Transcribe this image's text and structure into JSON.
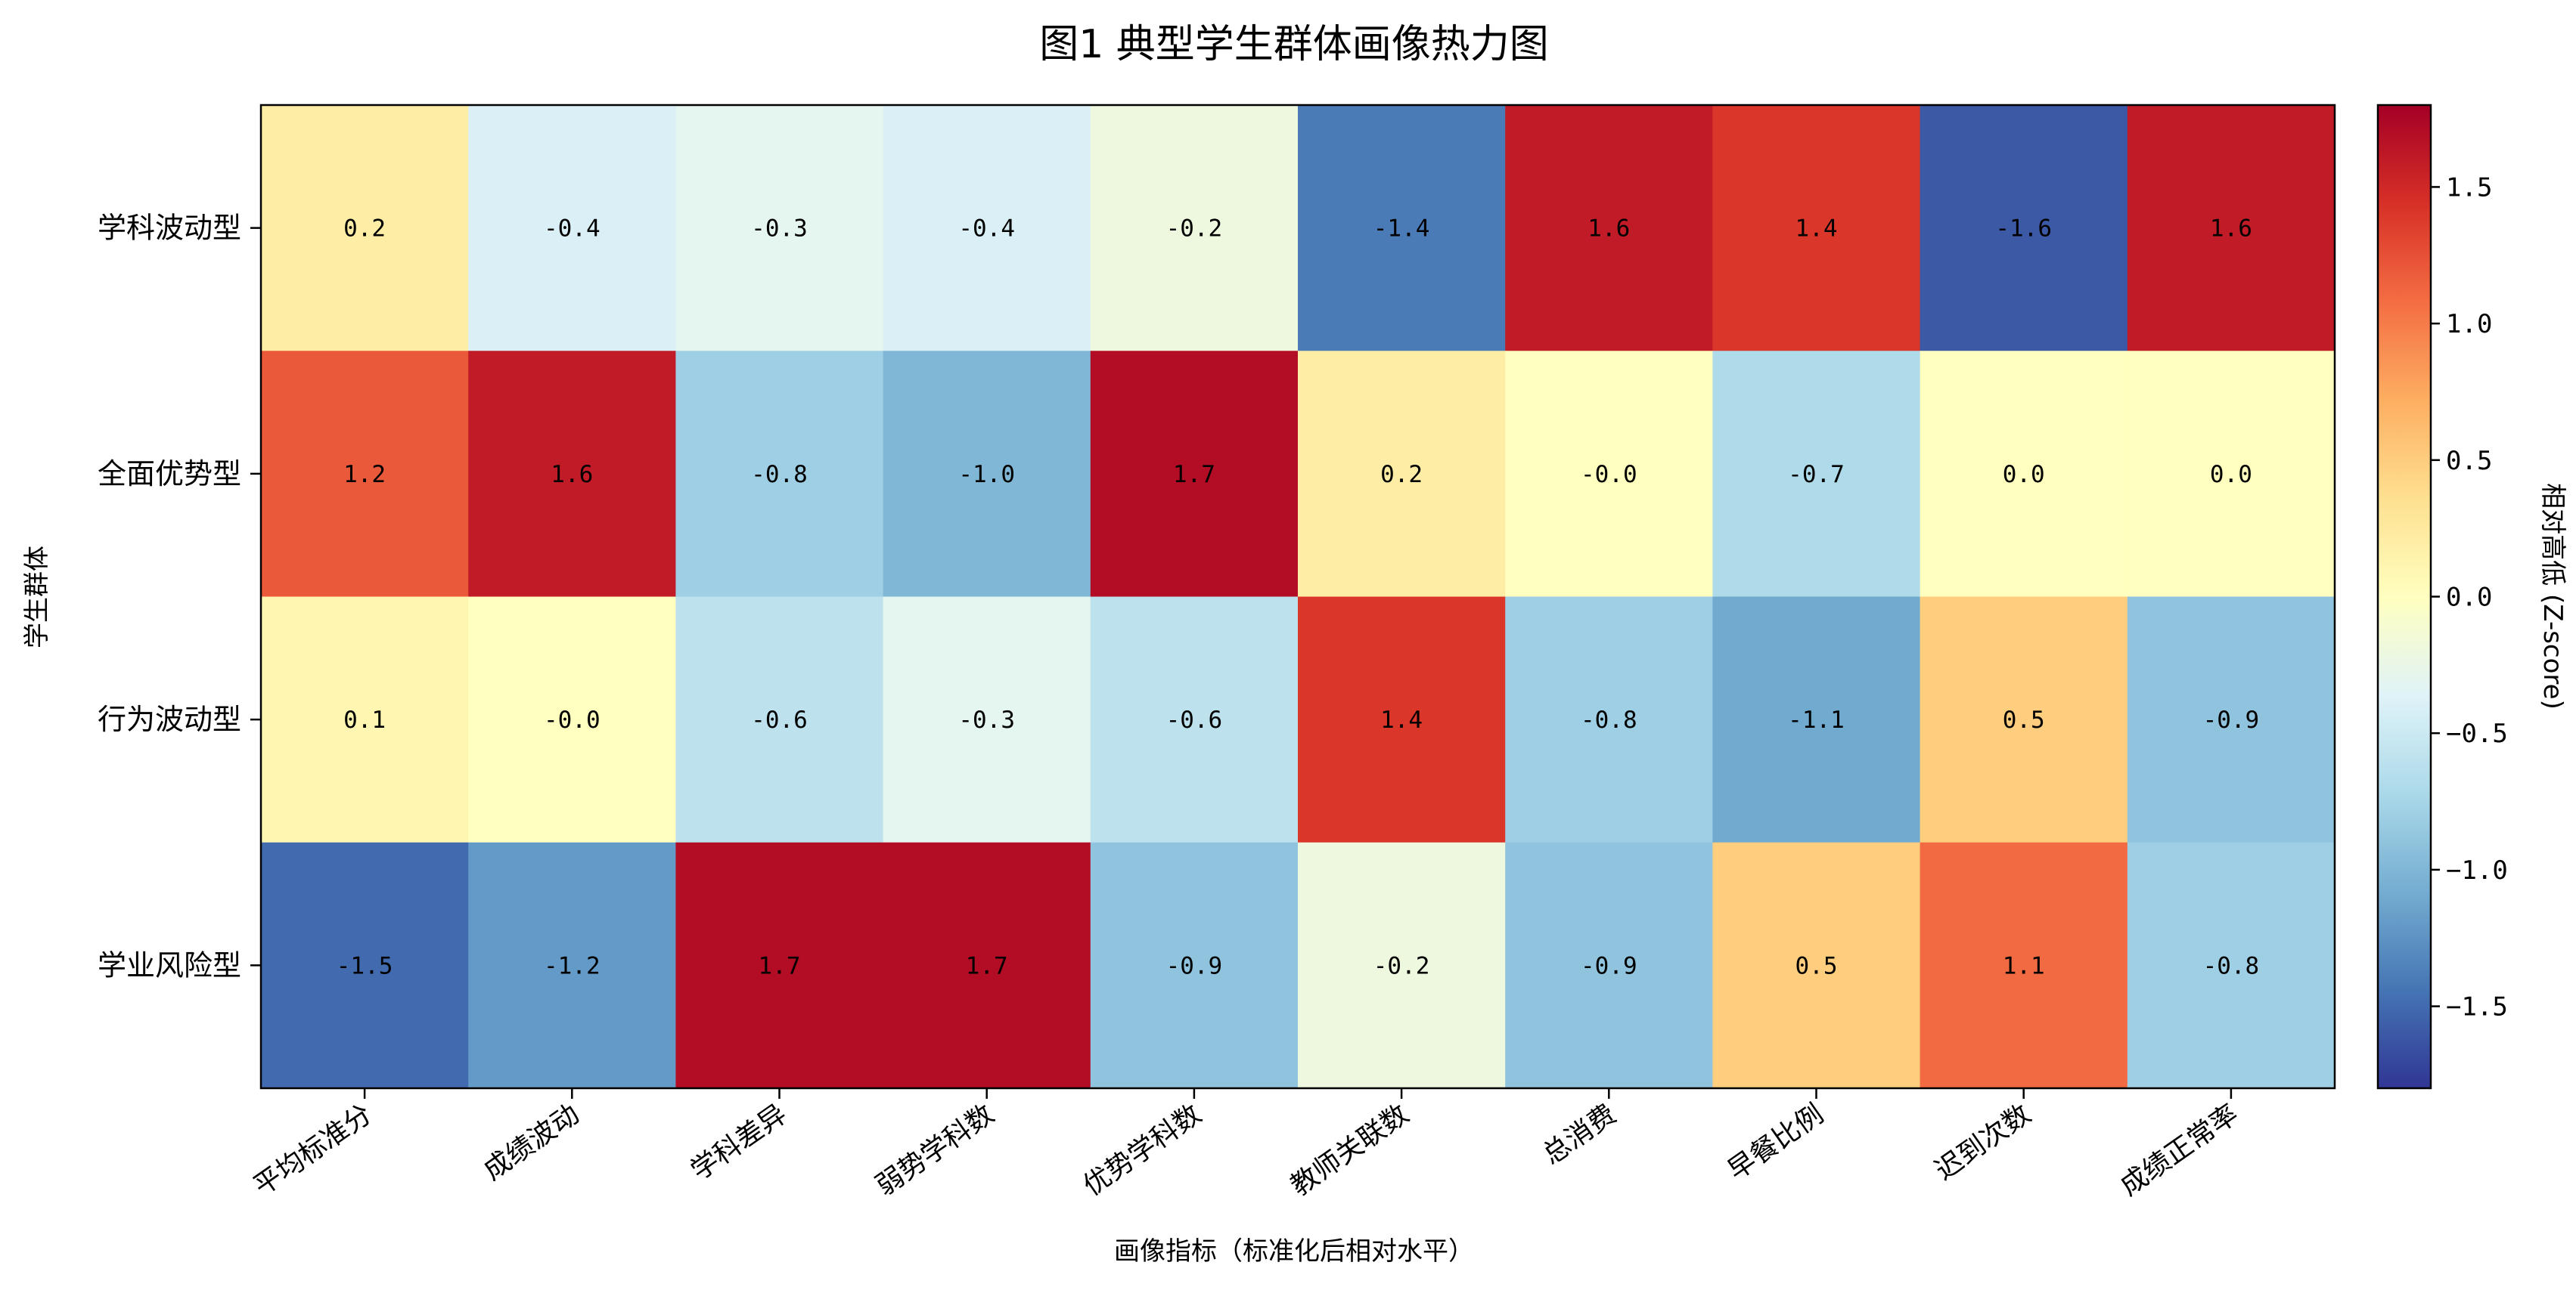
{
  "chart_data": {
    "type": "heatmap",
    "title": "图1 典型学生群体画像热力图",
    "xlabel": "画像指标（标准化后相对水平）",
    "ylabel": "学生群体",
    "x_categories": [
      "平均标准分",
      "成绩波动",
      "学科差异",
      "弱势学科数",
      "优势学科数",
      "教师关联数",
      "总消费",
      "早餐比例",
      "迟到次数",
      "成绩正常率"
    ],
    "y_categories": [
      "学科波动型",
      "全面优势型",
      "行为波动型",
      "学业风险型"
    ],
    "values": [
      [
        0.2,
        -0.4,
        -0.3,
        -0.4,
        -0.2,
        -1.4,
        1.6,
        1.4,
        -1.6,
        1.6
      ],
      [
        1.2,
        1.6,
        -0.8,
        -1.0,
        1.7,
        0.2,
        0.0,
        -0.7,
        0.0,
        0.0
      ],
      [
        0.1,
        0.0,
        -0.6,
        -0.3,
        -0.6,
        1.4,
        -0.8,
        -1.1,
        0.5,
        -0.9
      ],
      [
        -1.5,
        -1.2,
        1.7,
        1.7,
        -0.9,
        -0.2,
        -0.9,
        0.5,
        1.1,
        -0.8
      ]
    ],
    "value_labels": [
      [
        "0.2",
        "-0.4",
        "-0.3",
        "-0.4",
        "-0.2",
        "-1.4",
        "1.6",
        "1.4",
        "-1.6",
        "1.6"
      ],
      [
        "1.2",
        "1.6",
        "-0.8",
        "-1.0",
        "1.7",
        "0.2",
        "-0.0",
        "-0.7",
        "0.0",
        "0.0"
      ],
      [
        "0.1",
        "-0.0",
        "-0.6",
        "-0.3",
        "-0.6",
        "1.4",
        "-0.8",
        "-1.1",
        "0.5",
        "-0.9"
      ],
      [
        "-1.5",
        "-1.2",
        "1.7",
        "1.7",
        "-0.9",
        "-0.2",
        "-0.9",
        "0.5",
        "1.1",
        "-0.8"
      ]
    ],
    "colorbar": {
      "label": "相对高低 (Z-score)",
      "range": [
        -1.8,
        1.8
      ],
      "ticks": [
        -1.5,
        -1.0,
        -0.5,
        0.0,
        0.5,
        1.0,
        1.5
      ],
      "tick_labels": [
        "−1.5",
        "−1.0",
        "−0.5",
        "0.0",
        "0.5",
        "1.0",
        "1.5"
      ],
      "colormap": "RdYlBu_r",
      "colormap_stops": [
        "#313695",
        "#4575b4",
        "#74add1",
        "#abd9e9",
        "#e0f3f8",
        "#ffffbf",
        "#fee090",
        "#fdae61",
        "#f46d43",
        "#d73027",
        "#a50026"
      ]
    },
    "grid": false
  }
}
